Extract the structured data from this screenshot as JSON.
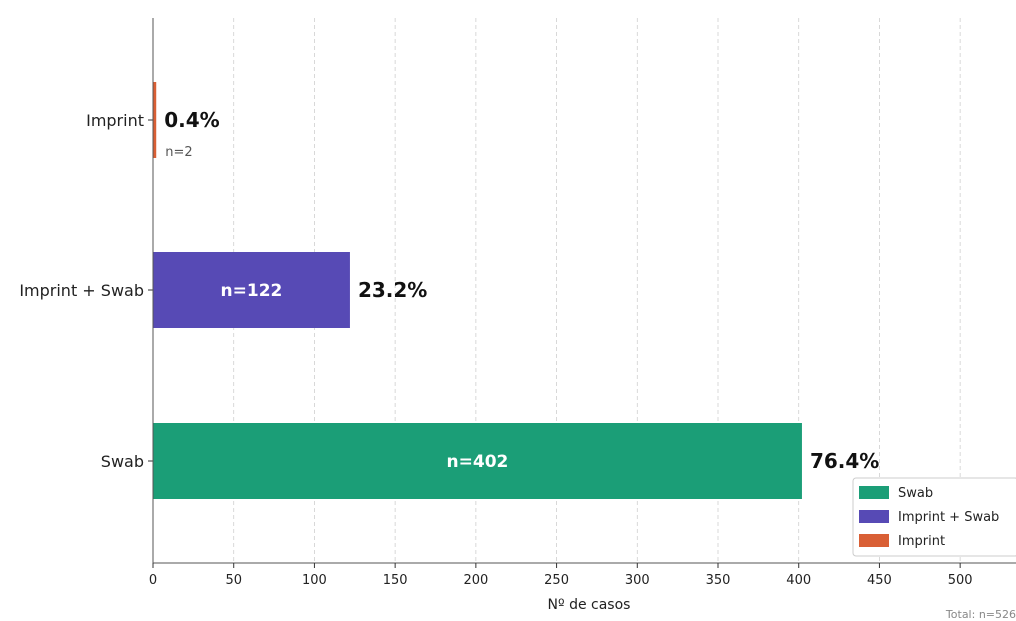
{
  "chart_data": {
    "type": "bar",
    "orientation": "horizontal",
    "categories": [
      "Swab",
      "Imprint + Swab",
      "Imprint"
    ],
    "values": [
      402,
      122,
      2
    ],
    "percent_labels": [
      "76.4%",
      "23.2%",
      "0.4%"
    ],
    "count_labels": [
      "n=402",
      "n=122",
      "n=2"
    ],
    "colors": [
      "#1b9e77",
      "#574ab5",
      "#d95f35"
    ],
    "xlabel": "Nº de casos",
    "ylabel": "",
    "xlim": [
      0,
      535
    ],
    "xticks": [
      0,
      50,
      100,
      150,
      200,
      250,
      300,
      350,
      400,
      450,
      500
    ],
    "grid": true,
    "legend": {
      "placement": "lower-right",
      "entries": [
        "Swab",
        "Imprint + Swab",
        "Imprint"
      ]
    },
    "note": "Total: n=526"
  }
}
